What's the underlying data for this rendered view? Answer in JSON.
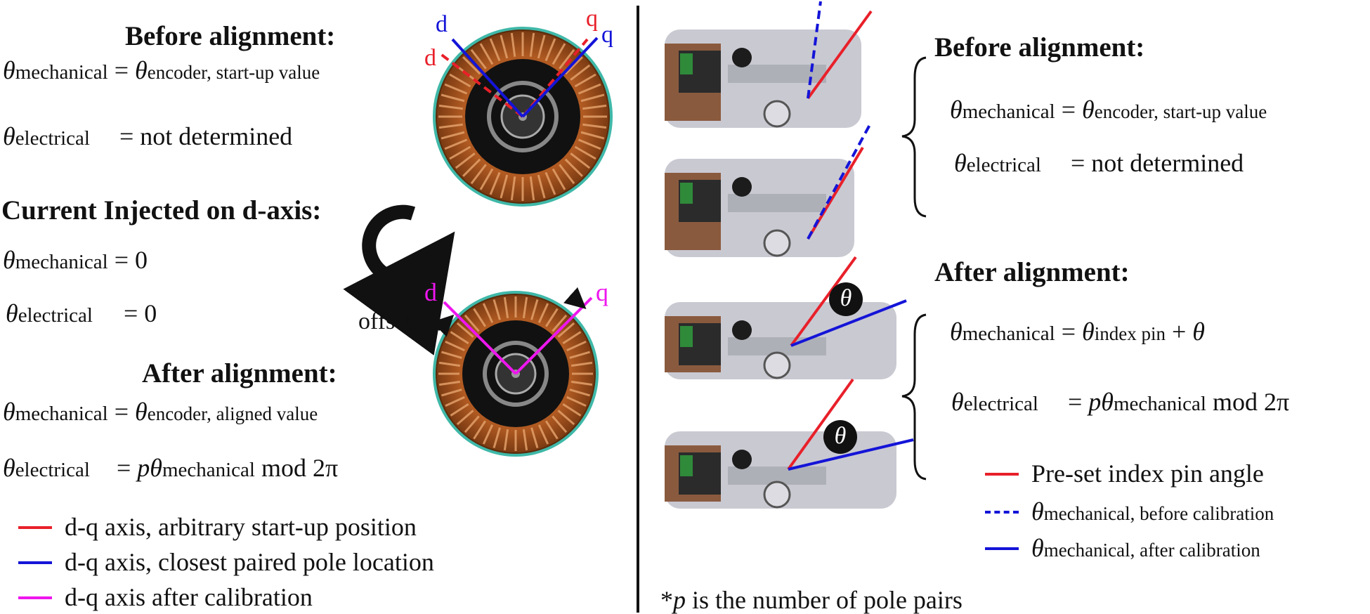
{
  "colors": {
    "red": "#e8202a",
    "blue": "#1414d8",
    "magenta": "#ee16ee",
    "black": "#111111"
  },
  "left": {
    "before": {
      "heading": "Before alignment:",
      "mech_label": "mechanical",
      "mech_rhs_sub": "encoder, start-up value",
      "elec_label": "electrical",
      "elec_rhs": "= not determined"
    },
    "current": {
      "heading": "Current Injected on d-axis:",
      "mech_label": "mechanical",
      "mech_rhs": "= 0",
      "elec_label": "electrical",
      "elec_rhs": "= 0"
    },
    "after": {
      "heading": "After alignment:",
      "mech_label": "mechanical",
      "mech_rhs_sub": "encoder, aligned value",
      "elec_label": "electrical",
      "elec_p": "p",
      "elec_sub": "mechanical",
      "elec_mod": "mod 2π"
    },
    "motor_top": {
      "d_red": "d",
      "q_red": "q",
      "d_blue": "d",
      "q_blue": "q"
    },
    "motor_bottom": {
      "d": "d",
      "q": "q",
      "offset_label": "offset"
    },
    "legend": [
      {
        "text": "d-q axis, arbitrary start-up position",
        "color": "red",
        "style": "solid"
      },
      {
        "text": "d-q axis, closest paired pole location",
        "color": "blue",
        "style": "solid"
      },
      {
        "text": "d-q axis after calibration",
        "color": "magenta",
        "style": "solid"
      }
    ]
  },
  "right": {
    "before": {
      "heading": "Before alignment:",
      "mech_label": "mechanical",
      "mech_rhs_sub": "encoder, start-up value",
      "elec_label": "electrical",
      "elec_rhs": "= not determined"
    },
    "after": {
      "heading": "After alignment:",
      "mech_label": "mechanical",
      "mech_rhs_sub": "index pin",
      "mech_plus": "+",
      "elec_label": "electrical",
      "elec_p": "p",
      "elec_sub": "mechanical",
      "elec_mod": "mod 2π"
    },
    "theta_badge": "θ",
    "legend": [
      {
        "text": "Pre-set index pin angle",
        "color": "red",
        "style": "solid"
      },
      {
        "sub": "mechanical, before calibration",
        "color": "blue",
        "style": "dashed"
      },
      {
        "sub": "mechanical, after calibration",
        "color": "blue",
        "style": "solid"
      }
    ],
    "footnote_p": "p",
    "footnote_text": " is the number of pole pairs"
  }
}
